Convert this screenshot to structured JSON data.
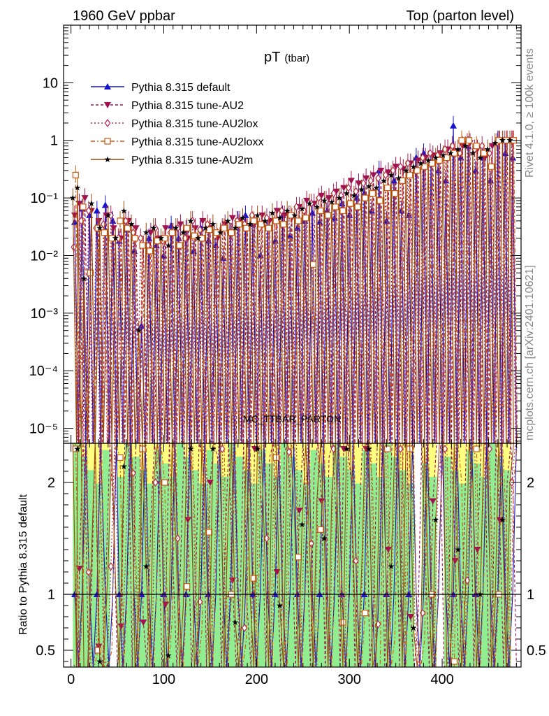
{
  "header": {
    "left": "1960 GeV ppbar",
    "right": "Top (parton level)"
  },
  "side_labels": {
    "rivet": "Rivet 4.1.0, ≥ 100k events",
    "mcplots": "mcplots.cern.ch [arXiv:2401.10621]"
  },
  "watermark": "MC_TTBAR_PARTON",
  "chart_data": {
    "type": "line",
    "title_main": "pT",
    "title_sub": "(tbar)",
    "xlabel": "",
    "ylabel_top": "",
    "ylabel_ratio": "Ratio to Pythia 8.315 default",
    "xlim": [
      -8,
      485
    ],
    "ylim_top": [
      5.5e-06,
      100
    ],
    "ylog_top": true,
    "ylim_ratio": [
      0.35,
      2.35
    ],
    "x_ticks": [
      0,
      100,
      200,
      300,
      400
    ],
    "x_tick_labels": [
      "0",
      "100",
      "200",
      "300",
      "400"
    ],
    "y_ticks_top": [
      1e-05,
      0.0001,
      0.001,
      0.01,
      0.1,
      1,
      10
    ],
    "y_tick_labels_top": [
      "10⁻⁵",
      "10⁻⁴",
      "10⁻³",
      "10⁻²",
      "10⁻¹",
      "1",
      "10"
    ],
    "y_ticks_ratio": [
      0.5,
      1,
      2
    ],
    "y_tick_labels_ratio": [
      "0.5",
      "1",
      "2"
    ],
    "legend_position": "top-left",
    "series": [
      {
        "name": "Pythia 8.315 default",
        "color": "#1414cc",
        "dash": "",
        "marker": "triangle-up",
        "x": [
          4,
          12,
          20,
          28,
          37,
          45,
          52,
          60,
          68,
          76,
          84,
          92,
          100,
          108,
          116,
          124,
          132,
          140,
          148,
          156,
          164,
          172,
          180,
          188,
          196,
          204,
          212,
          220,
          228,
          236,
          244,
          252,
          260,
          268,
          276,
          284,
          292,
          300,
          308,
          316,
          324,
          332,
          340,
          348,
          356,
          364,
          372,
          380,
          388,
          396,
          404,
          412,
          420,
          428,
          436,
          444,
          452,
          460,
          468,
          476
        ],
        "y": [
          0.038,
          0.065,
          0.05,
          0.06,
          0.075,
          0.04,
          0.018,
          0.028,
          0.012,
          0.0006,
          0.02,
          0.015,
          0.01,
          0.033,
          0.02,
          0.028,
          0.012,
          0.03,
          0.018,
          0.015,
          0.009,
          0.025,
          0.04,
          0.05,
          0.035,
          0.01,
          0.03,
          0.018,
          0.05,
          0.022,
          0.03,
          0.04,
          0.055,
          0.038,
          0.06,
          0.045,
          0.08,
          0.05,
          0.1,
          0.12,
          0.06,
          0.3,
          0.04,
          0.2,
          0.06,
          0.05,
          0.5,
          0.6,
          0.4,
          0.3,
          0.2,
          1.8,
          0.5,
          0.8,
          0.3,
          0.5,
          0.2,
          1.0,
          0.6,
          0.5
        ]
      },
      {
        "name": "Pythia 8.315 tune-AU2",
        "color": "#a0124f",
        "dash": "4,3",
        "marker": "triangle-down",
        "x": [
          4,
          9,
          15,
          22,
          30,
          38,
          46,
          54,
          62,
          70,
          78,
          86,
          94,
          102,
          110,
          118,
          126,
          134,
          142,
          150,
          158,
          166,
          174,
          182,
          190,
          198,
          206,
          214,
          222,
          230,
          238,
          246,
          254,
          262,
          270,
          278,
          286,
          294,
          302,
          310,
          318,
          326,
          334,
          342,
          350,
          358,
          366,
          374,
          382,
          390,
          398,
          406,
          414,
          422,
          430,
          438,
          446,
          454,
          462,
          470,
          476
        ],
        "y": [
          0.05,
          0.08,
          0.1,
          0.06,
          0.04,
          0.05,
          0.03,
          0.02,
          0.04,
          0.03,
          0.015,
          0.025,
          0.02,
          0.03,
          0.025,
          0.035,
          0.02,
          0.03,
          0.04,
          0.03,
          0.02,
          0.035,
          0.045,
          0.04,
          0.03,
          0.035,
          0.05,
          0.04,
          0.06,
          0.05,
          0.045,
          0.07,
          0.09,
          0.08,
          0.11,
          0.1,
          0.13,
          0.15,
          0.2,
          0.18,
          0.22,
          0.25,
          0.3,
          0.28,
          0.35,
          0.32,
          0.4,
          0.45,
          0.5,
          0.55,
          0.6,
          0.7,
          0.65,
          0.8,
          0.9,
          0.7,
          0.5,
          0.8,
          1.0,
          1.0,
          1.0
        ]
      },
      {
        "name": "Pythia 8.315 tune-AU2lox",
        "color": "#b02850",
        "dash": "2,3",
        "marker": "diamond-open",
        "x": [
          3,
          11,
          19,
          27,
          35,
          43,
          51,
          59,
          67,
          75,
          83,
          91,
          99,
          107,
          115,
          123,
          131,
          139,
          147,
          155,
          163,
          171,
          179,
          187,
          195,
          203,
          211,
          219,
          227,
          235,
          243,
          251,
          259,
          267,
          275,
          283,
          291,
          299,
          307,
          315,
          323,
          331,
          339,
          347,
          355,
          363,
          371,
          379,
          387,
          395,
          403,
          411,
          419,
          427,
          435,
          443,
          451,
          459,
          467,
          475
        ],
        "y": [
          0.014,
          0.04,
          0.06,
          0.03,
          0.035,
          0.05,
          0.02,
          0.04,
          0.025,
          0.02,
          0.015,
          0.03,
          0.018,
          0.025,
          0.03,
          0.02,
          0.04,
          0.028,
          0.035,
          0.022,
          0.03,
          0.025,
          0.04,
          0.035,
          0.05,
          0.03,
          0.045,
          0.04,
          0.06,
          0.05,
          0.07,
          0.06,
          0.08,
          0.1,
          0.09,
          0.12,
          0.11,
          0.15,
          0.13,
          0.18,
          0.2,
          0.22,
          0.25,
          0.3,
          0.35,
          0.4,
          0.3,
          0.5,
          0.6,
          0.55,
          0.7,
          0.8,
          0.6,
          0.9,
          0.7,
          0.8,
          0.6,
          0.9,
          1.0,
          1.0
        ]
      },
      {
        "name": "Pythia 8.315 tune-AU2loxx",
        "color": "#cc5a10",
        "dash": "6,3,2,3",
        "marker": "square-open",
        "x": [
          5,
          13,
          21,
          29,
          36,
          44,
          53,
          61,
          69,
          77,
          85,
          93,
          101,
          109,
          117,
          125,
          133,
          141,
          149,
          157,
          165,
          173,
          181,
          189,
          197,
          205,
          213,
          221,
          229,
          237,
          245,
          253,
          261,
          269,
          277,
          285,
          293,
          301,
          309,
          317,
          325,
          333,
          341,
          349,
          357,
          365,
          373,
          381,
          389,
          397,
          405,
          413,
          421,
          429,
          437,
          445,
          453,
          461,
          469,
          477
        ],
        "y": [
          0.25,
          0.07,
          0.005,
          0.03,
          0.025,
          0.02,
          0.04,
          0.03,
          0.02,
          0.015,
          0.012,
          0.018,
          0.02,
          0.025,
          0.015,
          0.03,
          0.022,
          0.02,
          0.028,
          0.025,
          0.03,
          0.025,
          0.035,
          0.03,
          0.04,
          0.035,
          0.03,
          0.04,
          0.035,
          0.05,
          0.04,
          0.045,
          0.007,
          0.06,
          0.05,
          0.07,
          0.06,
          0.08,
          0.07,
          0.1,
          0.12,
          0.09,
          0.15,
          0.12,
          0.2,
          0.25,
          0.3,
          0.35,
          0.4,
          0.45,
          0.5,
          0.6,
          1.0,
          1.0,
          0.8,
          0.6,
          0.35,
          1.0,
          1.0,
          1.0
        ]
      },
      {
        "name": "Pythia 8.315 tune-AU2m",
        "color": "#9c4a0a",
        "dash": "",
        "marker": "star",
        "x": [
          2,
          7,
          14,
          22,
          31,
          40,
          48,
          57,
          65,
          73,
          81,
          89,
          97,
          105,
          113,
          121,
          129,
          137,
          145,
          153,
          161,
          169,
          177,
          185,
          193,
          201,
          209,
          217,
          225,
          233,
          241,
          249,
          257,
          265,
          273,
          281,
          289,
          297,
          305,
          313,
          321,
          329,
          337,
          345,
          353,
          361,
          369,
          377,
          385,
          393,
          401,
          409,
          417,
          425,
          433,
          441,
          449,
          457,
          465,
          473
        ],
        "y": [
          0.1,
          0.15,
          0.004,
          0.08,
          0.03,
          0.05,
          0.02,
          0.06,
          0.035,
          0.0005,
          0.025,
          0.03,
          0.02,
          0.015,
          0.03,
          0.025,
          0.04,
          0.02,
          0.03,
          0.035,
          0.025,
          0.04,
          0.03,
          0.045,
          0.035,
          0.05,
          0.04,
          0.055,
          0.045,
          0.06,
          0.05,
          0.065,
          0.08,
          0.07,
          0.09,
          0.085,
          0.1,
          0.12,
          0.11,
          0.14,
          0.16,
          0.15,
          0.2,
          0.25,
          0.22,
          0.3,
          0.35,
          0.4,
          0.45,
          0.5,
          0.55,
          0.6,
          0.7,
          0.8,
          0.6,
          0.5,
          0.7,
          0.9,
          1.0,
          1.0
        ]
      }
    ],
    "ratio_bands": {
      "inner_color": "#90ee90",
      "outer_color": "#ffff80"
    }
  }
}
